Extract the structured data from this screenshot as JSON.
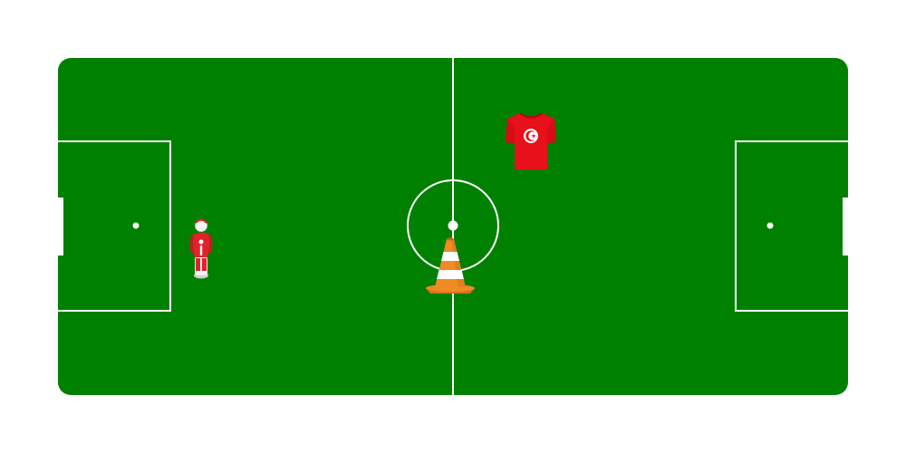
{
  "pitch": {
    "colors": {
      "background": "#ffffff",
      "grass": "#008000",
      "lines": "#ffffff"
    }
  },
  "objects": {
    "training_dummy": {
      "icon": "training-dummy-icon",
      "colors": {
        "body": "#e0222b",
        "accent": "#ffffff"
      }
    },
    "traffic_cone": {
      "icon": "traffic-cone-icon",
      "colors": {
        "body": "#f08a24",
        "stripe": "#ffffff"
      }
    },
    "jersey": {
      "icon": "tunisia-jersey-icon",
      "colors": {
        "body": "#e8101a",
        "emblem": "#ffffff"
      }
    }
  }
}
